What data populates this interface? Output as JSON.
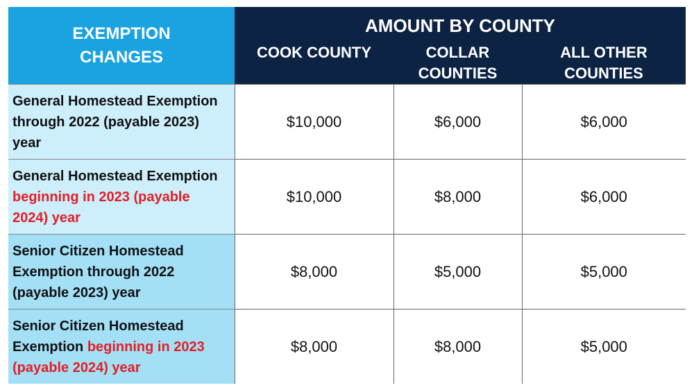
{
  "table": {
    "row_header": "EXEMPTION CHANGES",
    "column_group": "AMOUNT BY COUNTY",
    "columns": [
      "COOK COUNTY",
      "COLLAR COUNTIES",
      "ALL OTHER COUNTIES"
    ],
    "highlight_color": "#e41e26",
    "rows": [
      {
        "label": [
          {
            "text": "General Homestead Exemption through 2022 (payable 2023) year",
            "highlight": false
          }
        ],
        "values": [
          "$10,000",
          "$6,000",
          "$6,000"
        ]
      },
      {
        "label": [
          {
            "text": "General Homestead Exemption",
            "highlight": false
          },
          {
            "text": "beginning in 2023 (payable 2024) year",
            "highlight": true
          }
        ],
        "values": [
          "$10,000",
          "$8,000",
          "$6,000"
        ]
      },
      {
        "label": [
          {
            "text": "Senior Citizen Homestead Exemption through 2022 (payable 2023) year",
            "highlight": false
          }
        ],
        "values": [
          "$8,000",
          "$5,000",
          "$5,000"
        ]
      },
      {
        "label": [
          {
            "text": "Senior Citizen Homestead Exemption",
            "highlight": false
          },
          {
            "text": "beginning in 2023 (payable 2024) year",
            "highlight": true
          }
        ],
        "values": [
          "$8,000",
          "$8,000",
          "$5,000"
        ]
      }
    ]
  }
}
